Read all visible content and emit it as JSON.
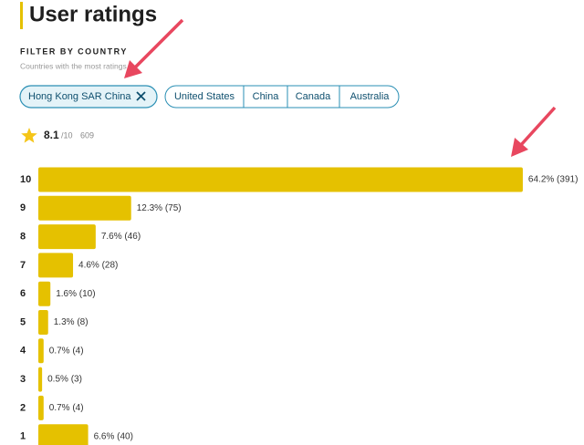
{
  "header": {
    "title": "User ratings"
  },
  "filter": {
    "label": "FILTER BY COUNTRY",
    "subtitle": "Countries with the most ratings",
    "chips": [
      "Hong Kong SAR China",
      "United States",
      "China",
      "Canada",
      "Australia"
    ]
  },
  "rating": {
    "score": 8.1,
    "scale": "/10",
    "count": 609
  },
  "chart_data": {
    "type": "bar",
    "orientation": "horizontal",
    "color": "#e5c100",
    "categories": [
      "10",
      "9",
      "8",
      "7",
      "6",
      "5",
      "4",
      "3",
      "2",
      "1"
    ],
    "values": [
      64.2,
      12.3,
      7.6,
      4.6,
      1.6,
      1.3,
      0.7,
      0.5,
      0.7,
      6.6
    ],
    "value_labels": [
      "64.2% (391)",
      "12.3% (75)",
      "7.6% (46)",
      "4.6% (28)",
      "1.6% (10)",
      "1.3% (8)",
      "0.7% (4)",
      "0.5% (3)",
      "0.7% (4)",
      "6.6% (40)"
    ]
  }
}
